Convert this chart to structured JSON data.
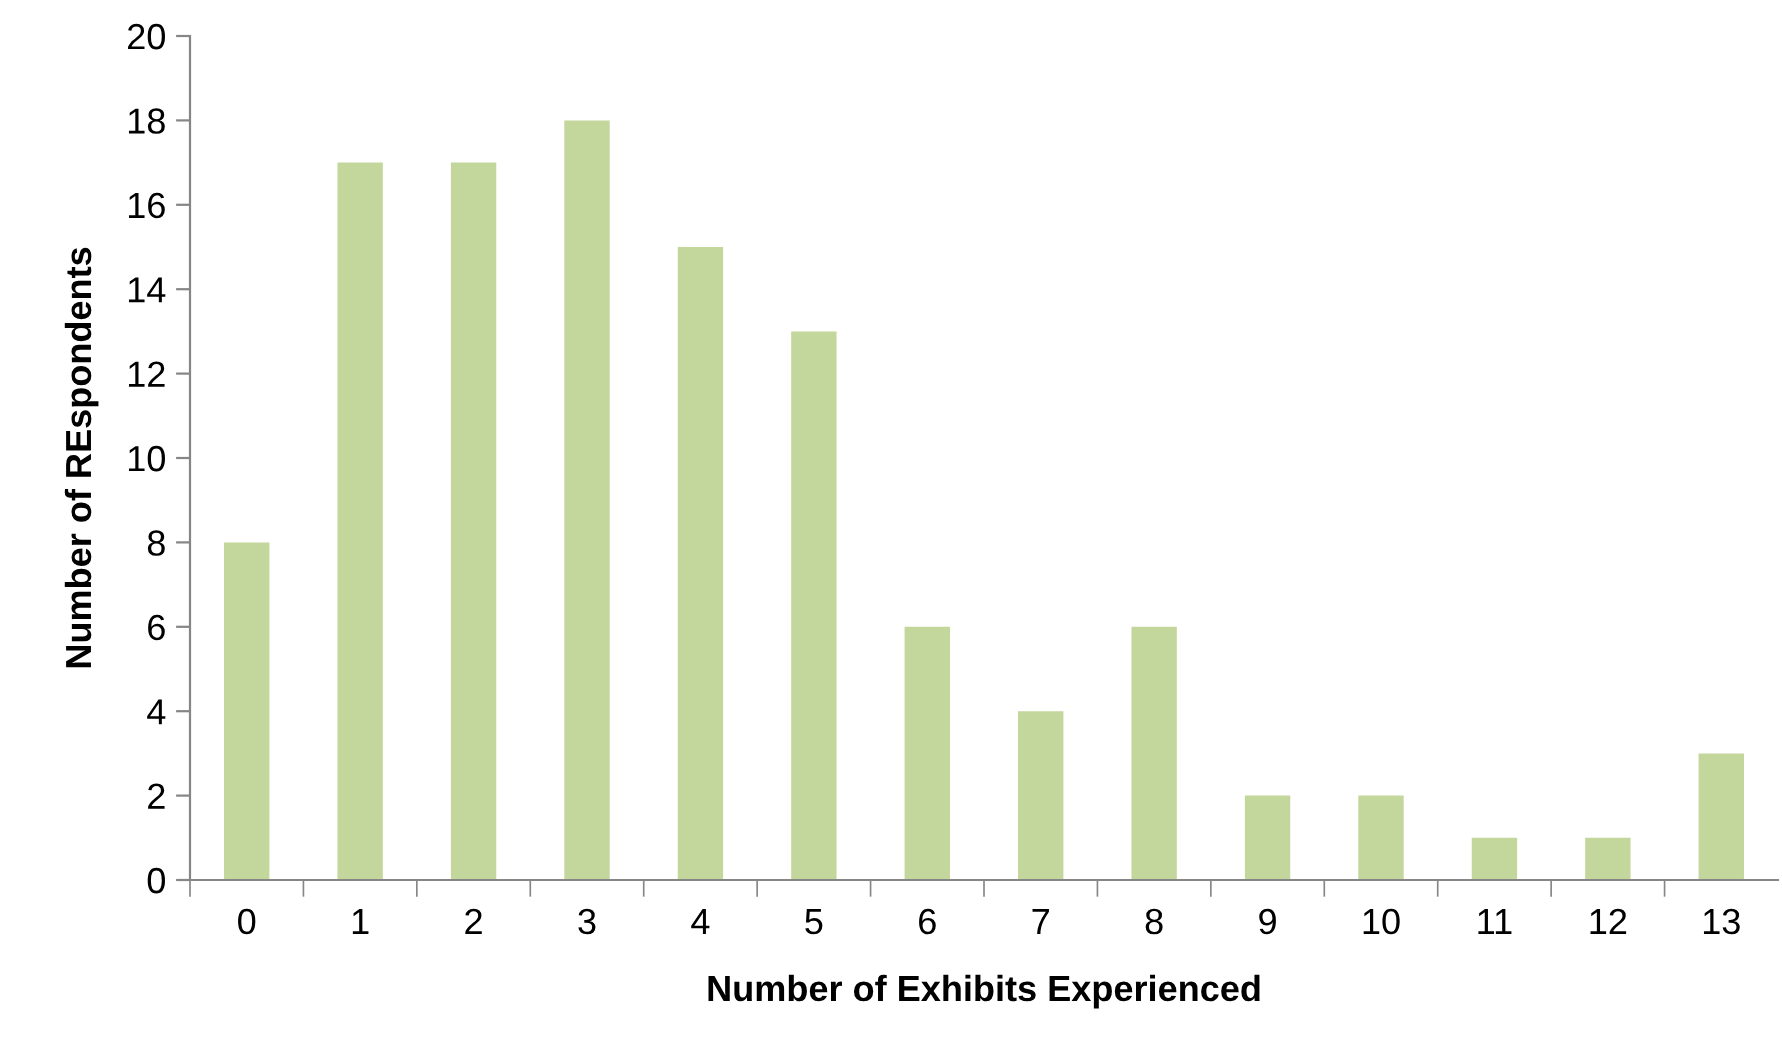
{
  "chart_data": {
    "type": "bar",
    "xlabel": "Number of Exhibits Experienced",
    "ylabel": "Number of REspondents",
    "categories": [
      "0",
      "1",
      "2",
      "3",
      "4",
      "5",
      "6",
      "7",
      "8",
      "9",
      "10",
      "11",
      "12",
      "13"
    ],
    "values": [
      8,
      17,
      17,
      18,
      15,
      13,
      6,
      4,
      6,
      2,
      2,
      1,
      1,
      3
    ],
    "color": "#c3d69b",
    "ylim": [
      0,
      20
    ],
    "yticks": [
      0,
      2,
      4,
      6,
      8,
      10,
      12,
      14,
      16,
      18,
      20
    ],
    "grid": false,
    "legend": false
  }
}
